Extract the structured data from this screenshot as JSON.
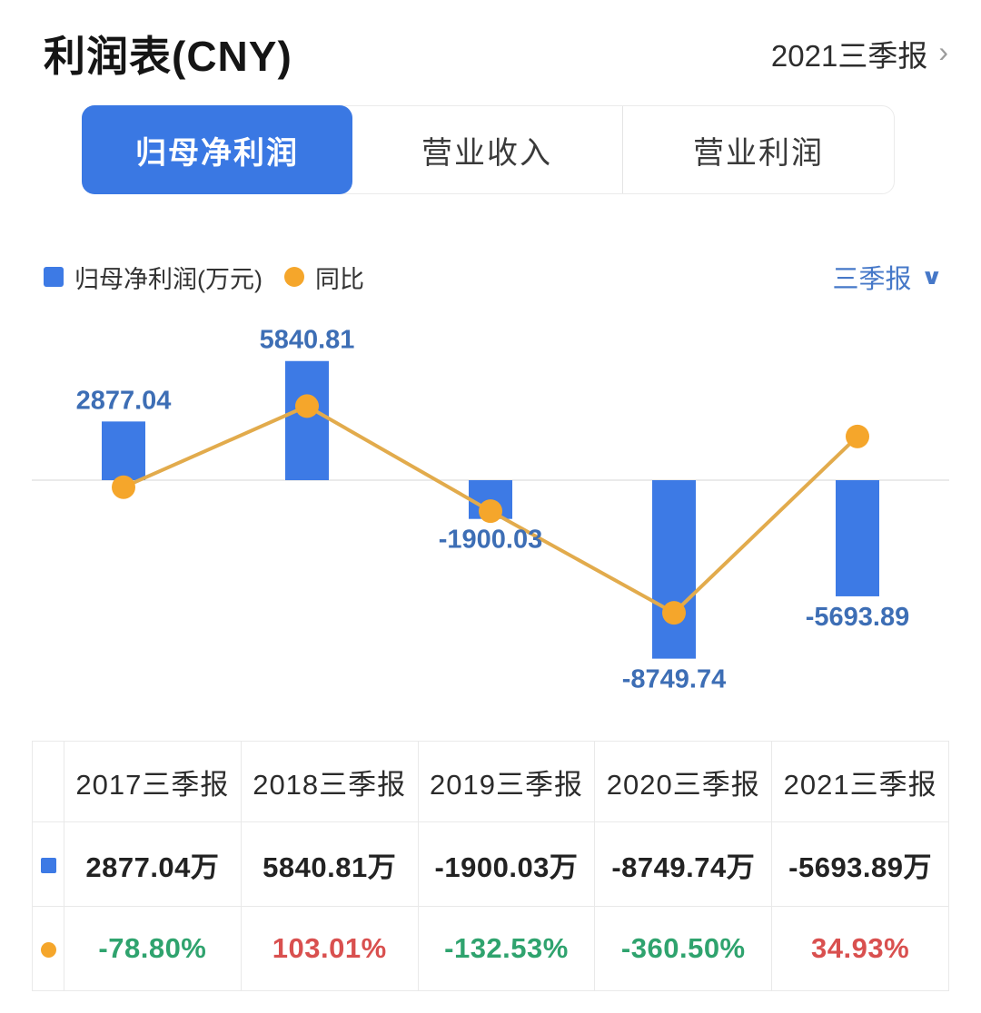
{
  "header": {
    "title": "利润表(CNY)",
    "period": "2021三季报",
    "chevron_right": "›"
  },
  "tabs": [
    {
      "label": "归母净利润",
      "active": true
    },
    {
      "label": "营业收入",
      "active": false
    },
    {
      "label": "营业利润",
      "active": false
    }
  ],
  "legend": {
    "bar_label": "归母净利润(万元)",
    "line_label": "同比",
    "period_selector": "三季报",
    "chevron_down": "∨"
  },
  "chart_data": {
    "type": "bar+line",
    "categories": [
      "2017三季报",
      "2018三季报",
      "2019三季报",
      "2020三季报",
      "2021三季报"
    ],
    "series": [
      {
        "name": "归母净利润(万元)",
        "type": "bar",
        "values": [
          2877.04,
          5840.81,
          -1900.03,
          -8749.74,
          -5693.89
        ],
        "color": "#3D7AE5"
      },
      {
        "name": "同比",
        "type": "line",
        "values": [
          -78.8,
          103.01,
          -132.53,
          -360.5,
          34.93
        ],
        "unit": "%",
        "line_color": "#E2AB4C",
        "dot_color": "#F5A62B"
      }
    ],
    "bar_labels": [
      "2877.04",
      "5840.81",
      "-1900.03",
      "-8749.74",
      "-5693.89"
    ],
    "title": "",
    "xlabel": "",
    "ylabel": "",
    "grid": false,
    "zero_axis_line": true,
    "legend_position": "top-left",
    "label_color": "#3D6EB5"
  },
  "table": {
    "headers": [
      "2017三季报",
      "2018三季报",
      "2019三季报",
      "2020三季报",
      "2021三季报"
    ],
    "rows": [
      {
        "icon": "bar-series-swatch",
        "values": [
          "2877.04万",
          "5840.81万",
          "-1900.03万",
          "-8749.74万",
          "-5693.89万"
        ],
        "value_colors": [
          "dark",
          "dark",
          "dark",
          "dark",
          "dark"
        ]
      },
      {
        "icon": "line-series-swatch",
        "values": [
          "-78.80%",
          "103.01%",
          "-132.53%",
          "-360.50%",
          "34.93%"
        ],
        "value_colors": [
          "green",
          "red",
          "green",
          "green",
          "red"
        ]
      }
    ]
  },
  "colors": {
    "accent_blue": "#3A78E3",
    "bar_blue": "#3D7AE5",
    "line_orange": "#E2AB4C",
    "dot_orange": "#F5A62B",
    "chart_label_blue": "#3D6EB5",
    "dropdown_blue": "#4678C8",
    "green": "#2FA36E",
    "red": "#D9504F",
    "dark": "#222222",
    "axis_gray": "#E3E3E3"
  }
}
